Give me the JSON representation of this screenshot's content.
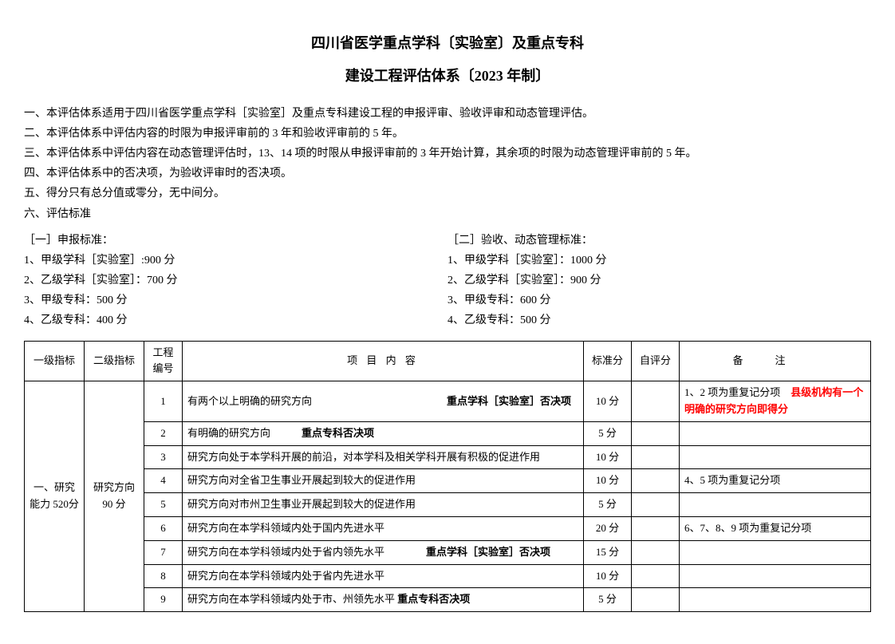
{
  "title1": "四川省医学重点学科〔实验室〕及重点专科",
  "title2": "建设工程评估体系〔2023 年制〕",
  "intro": [
    "一、本评估体系适用于四川省医学重点学科［实验室］及重点专科建设工程的申报评审、验收评审和动态管理评估。",
    "二、本评估体系中评估内容的时限为申报评审前的 3 年和验收评审前的 5 年。",
    "三、本评估体系中评估内容在动态管理评估时，13、14 项的时限从申报评审前的 3 年开始计算，其余项的时限为动态管理评审前的 5 年。",
    "四、本评估体系中的否决项，为验收评审时的否决项。",
    "五、得分只有总分值或零分，无中间分。",
    "六、评估标准"
  ],
  "standards_left_header": "［一］申报标准：",
  "standards_left": [
    "1、甲级学科［实验室］:900 分",
    "2、乙级学科［实验室］：700 分",
    "3、甲级专科：500 分",
    "4、乙级专科：400 分"
  ],
  "standards_right_header": "［二］验收、动态管理标准：",
  "standards_right": [
    "1、甲级学科［实验室］：1000 分",
    "2、乙级学科［实验室］：900 分",
    "3、甲级专科：600 分",
    "4、乙级专科：500 分"
  ],
  "headers": {
    "l1": "一级指标",
    "l2": "二级指标",
    "num": "工程编号",
    "content": "项 目 内 容",
    "score": "标准分",
    "self": "自评分",
    "remark": "备注"
  },
  "level1": "一、研究能力 520分",
  "level2": "研究方向90 分",
  "rows": [
    {
      "num": "1",
      "content_pre": "有两个以上明确的研究方向",
      "content_bold": "　　　　　　　　　　　　　重点学科［实验室］否决项",
      "score": "10 分",
      "remark_pre": "1、2 项为重复记分项",
      "remark_red": "　县级机构有一个明确的研究方向即得分"
    },
    {
      "num": "2",
      "content_pre": "有明确的研究方向　　　",
      "content_bold": "重点专科否决项",
      "score": "5 分",
      "remark_pre": "",
      "remark_red": ""
    },
    {
      "num": "3",
      "content_pre": "研究方向处于本学科开展的前沿，对本学科及相关学科开展有积极的促进作用",
      "content_bold": "",
      "score": "10 分",
      "remark_pre": "",
      "remark_red": ""
    },
    {
      "num": "4",
      "content_pre": "研究方向对全省卫生事业开展起到较大的促进作用",
      "content_bold": "",
      "score": "10 分",
      "remark_pre": "4、5 项为重复记分项",
      "remark_red": ""
    },
    {
      "num": "5",
      "content_pre": "研究方向对市州卫生事业开展起到较大的促进作用",
      "content_bold": "",
      "score": "5 分",
      "remark_pre": "",
      "remark_red": ""
    },
    {
      "num": "6",
      "content_pre": "研究方向在本学科领域内处于国内先进水平",
      "content_bold": "",
      "score": "20 分",
      "remark_pre": "6、7、8、9 项为重复记分项",
      "remark_red": ""
    },
    {
      "num": "7",
      "content_pre": "研究方向在本学科领域内处于省内领先水平　　　　",
      "content_bold": "重点学科［实验室］否决项",
      "score": "15 分",
      "remark_pre": "",
      "remark_red": ""
    },
    {
      "num": "8",
      "content_pre": "研究方向在本学科领域内处于省内先进水平",
      "content_bold": "",
      "score": "10 分",
      "remark_pre": "",
      "remark_red": ""
    },
    {
      "num": "9",
      "content_pre": "研究方向在本学科领域内处于市、州领先水平 ",
      "content_bold": "重点专科否决项",
      "score": "5 分",
      "remark_pre": "",
      "remark_red": ""
    }
  ]
}
